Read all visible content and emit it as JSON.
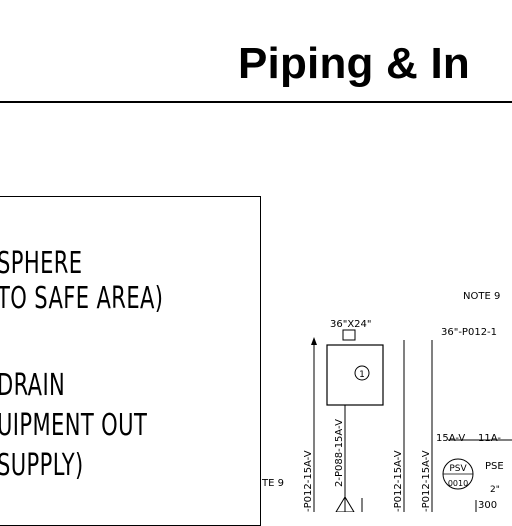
{
  "slide": {
    "title": "Piping & In"
  },
  "notes_panel": {
    "lines": [
      "SPHERE",
      "TO SAFE AREA)",
      "DRAIN",
      "UIPMENT OUT",
      "SUPPLY)"
    ]
  },
  "drawing": {
    "note_9_top": "NOTE 9",
    "note_9_left": "TE 9",
    "vessel_size": "36\"X24\"",
    "line_36": "36\"-P012-1",
    "vessel_tag": "1",
    "line_vertical_1": "-P012-15A-V",
    "line_vertical_2": "2-P088-15A-V",
    "line_vertical_3": "-P012-15A-V",
    "line_vertical_4": "-P012-15A-V",
    "spec_15a": "15A-V",
    "spec_11a": "11A-",
    "psv_label": "PSV",
    "psv_number": "0010",
    "pse_label": "PSE",
    "size_2": "2\"",
    "set_300": "300"
  }
}
